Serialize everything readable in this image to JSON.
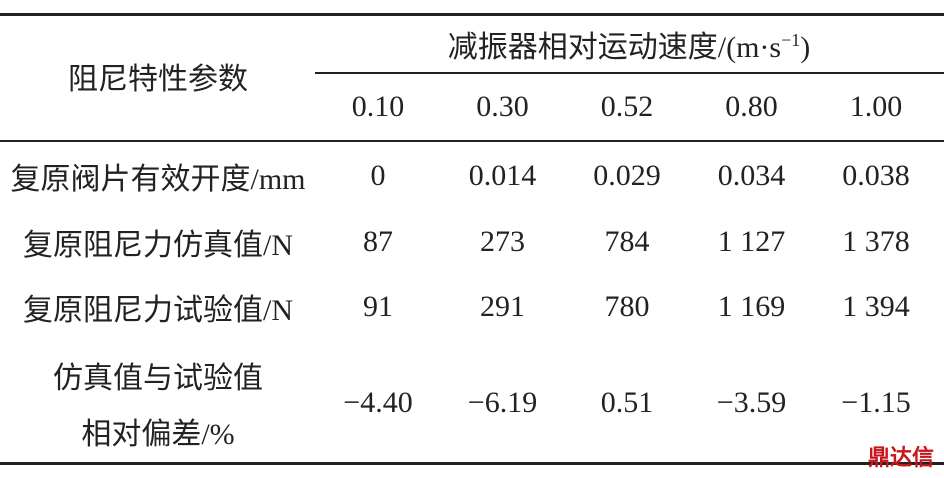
{
  "header": {
    "row_label": "阻尼特性参数",
    "group": {
      "text": "减振器相对运动速度/(m·s",
      "superscript": "−1",
      "close": ")"
    },
    "columns": [
      "0.10",
      "0.30",
      "0.52",
      "0.80",
      "1.00"
    ]
  },
  "table": {
    "rows": [
      {
        "label": [
          "复原阀片有效开度/mm"
        ],
        "cells": [
          "0",
          "0.014",
          "0.029",
          "0.034",
          "0.038"
        ]
      },
      {
        "label": [
          "复原阻尼力仿真值/N"
        ],
        "cells": [
          "87",
          "273",
          "784",
          "1 127",
          "1 378"
        ]
      },
      {
        "label": [
          "复原阻尼力试验值/N"
        ],
        "cells": [
          "91",
          "291",
          "780",
          "1 169",
          "1 394"
        ]
      },
      {
        "label": [
          "仿真值与试验值",
          "相对偏差/%"
        ],
        "cells": [
          "−4.40",
          "−6.19",
          "0.51",
          "−3.59",
          "−1.15"
        ]
      }
    ]
  },
  "watermark": "鼎达信"
}
